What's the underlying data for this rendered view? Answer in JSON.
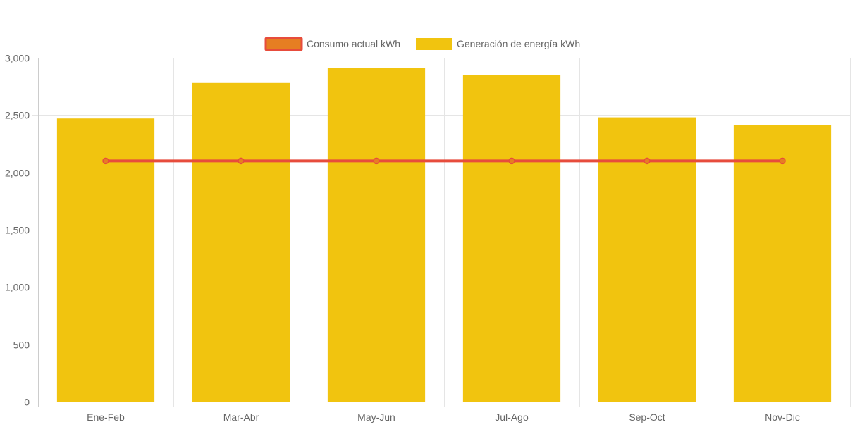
{
  "chart_data": {
    "type": "bar",
    "categories": [
      "Ene-Feb",
      "Mar-Abr",
      "May-Jun",
      "Jul-Ago",
      "Sep-Oct",
      "Nov-Dic"
    ],
    "series": [
      {
        "name": "Consumo actual kWh",
        "type": "line",
        "values": [
          2100,
          2100,
          2100,
          2100,
          2100,
          2100
        ]
      },
      {
        "name": "Generación de energía kWh",
        "type": "bar",
        "values": [
          2470,
          2780,
          2910,
          2850,
          2480,
          2410
        ]
      }
    ],
    "title": "",
    "xlabel": "",
    "ylabel": "",
    "ylim": [
      0,
      3000
    ],
    "yticks": [
      0,
      500,
      1000,
      1500,
      2000,
      2500,
      3000
    ],
    "ytick_labels": [
      "0",
      "500",
      "1,000",
      "1,500",
      "2,000",
      "2,500",
      "3,000"
    ],
    "grid": true,
    "legend": "top-center",
    "colors": {
      "bar_fill": "#f1c40f",
      "line_stroke": "#e74c3c",
      "line_point_fill": "#e67e22",
      "grid": "#e5e5e5",
      "axis": "#cccccc"
    }
  }
}
